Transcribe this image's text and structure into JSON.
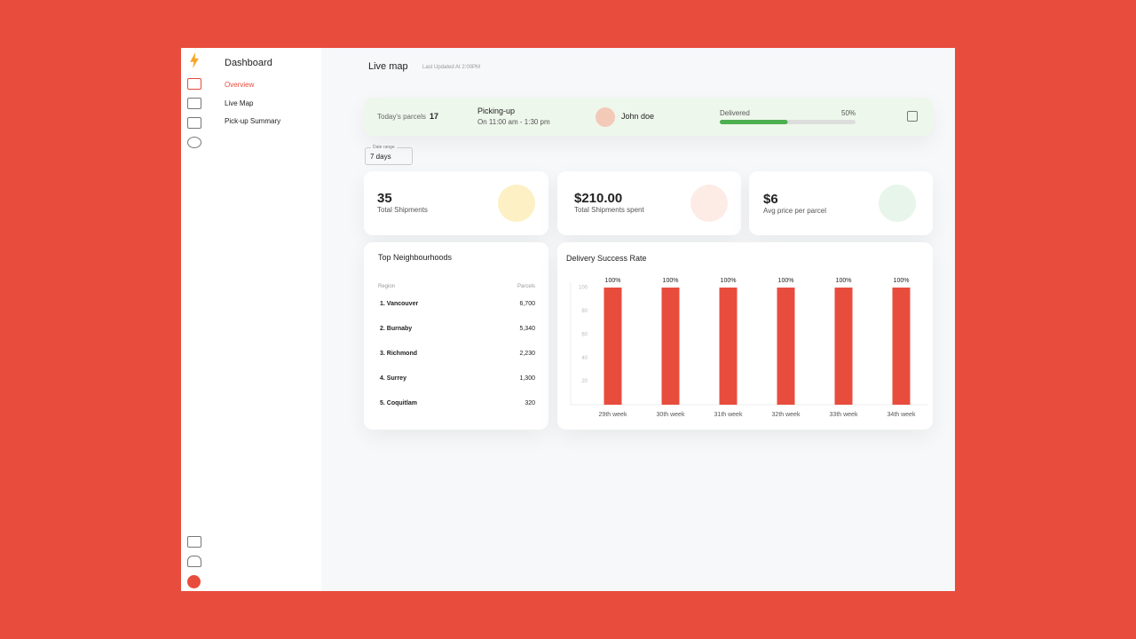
{
  "sidebar": {
    "title": "Dashboard",
    "items": [
      "Overview",
      "Live Map",
      "Pick-up Summary"
    ]
  },
  "header": {
    "title": "Live map",
    "updated": "Last Updated At 2:00PM"
  },
  "status": {
    "parcels_label": "Today's parcels",
    "parcels": "17",
    "picking_label": "Picking-up",
    "time": "On 11:00 am - 1:30 pm",
    "driver": "John doe",
    "delivered_label": "Delivered",
    "delivered": {
      "value": 50,
      "label": "50%"
    }
  },
  "filter": {
    "label": "Date range",
    "value": "7 days"
  },
  "stats": [
    {
      "value": "35",
      "label": "Total Shipments"
    },
    {
      "value": "$210.00",
      "label": "Total Shipments spent"
    },
    {
      "value": "$6",
      "label": "Avg price per parcel"
    }
  ],
  "table": {
    "title": "Top Neighbourhoods",
    "columns": [
      "Region",
      "Parcels"
    ],
    "rows": [
      [
        "1. Vancouver",
        "6,700"
      ],
      [
        "2. Burnaby",
        "5,340"
      ],
      [
        "3. Richmond",
        "2,230"
      ],
      [
        "4. Surrey",
        "1,300"
      ],
      [
        "5. Coquitlam",
        "320"
      ]
    ]
  },
  "chart_data": {
    "type": "bar",
    "title": "Delivery Success Rate",
    "categories": [
      "29th week",
      "30th week",
      "31th week",
      "32th week",
      "33th week",
      "34th week"
    ],
    "values": [
      100,
      100,
      100,
      100,
      100,
      100
    ],
    "value_labels": [
      "100%",
      "100%",
      "100%",
      "100%",
      "100%",
      "100%"
    ],
    "color": "#e84c3d",
    "ylim": [
      0,
      100
    ],
    "yticks": [
      20,
      40,
      60,
      80,
      100
    ],
    "grid": false
  }
}
